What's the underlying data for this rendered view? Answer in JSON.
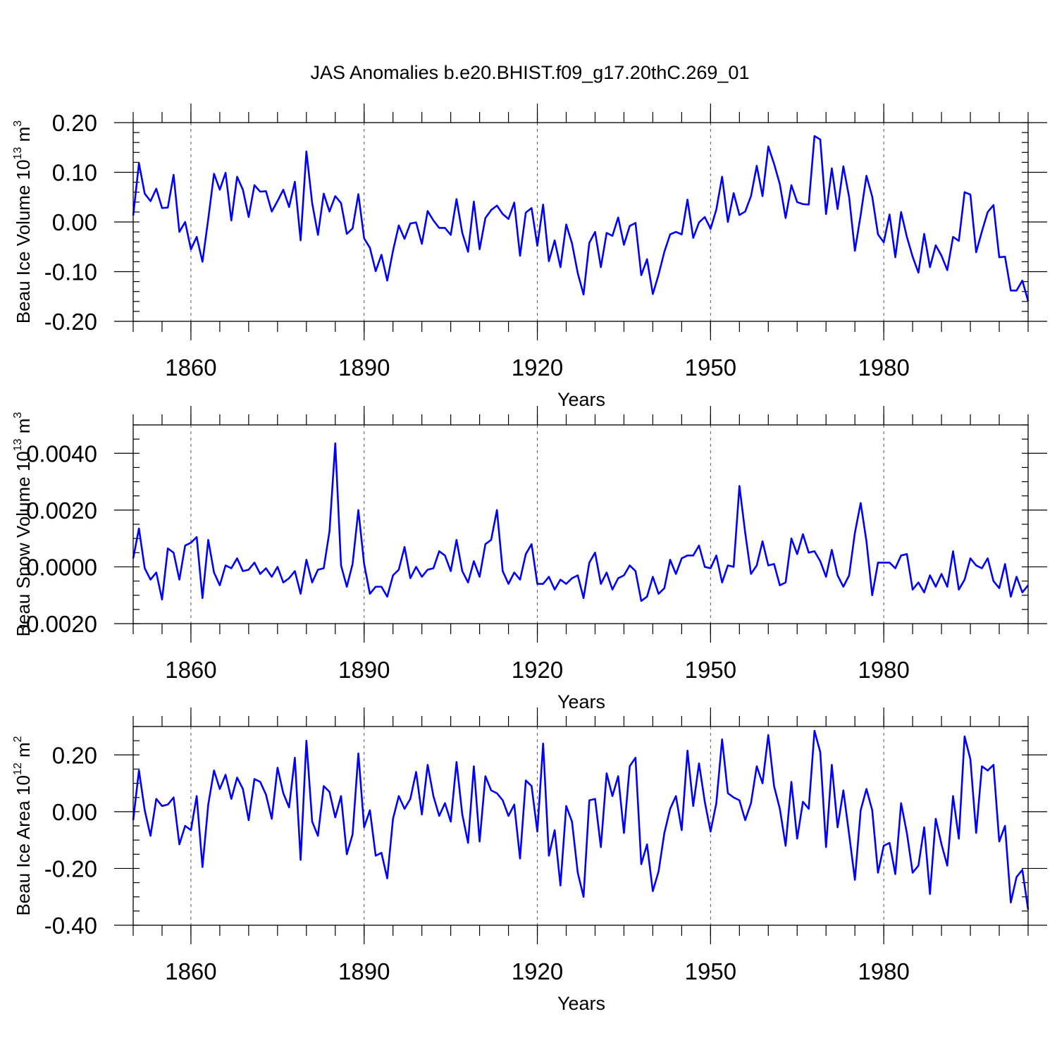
{
  "title": "JAS Anomalies b.e20.BHIST.f09_g17.20thC.269_01",
  "chart_data": [
    {
      "type": "line",
      "ylabel_main": "Beau Ice Volume 10",
      "ylabel_sup": "13",
      "ylabel_unit": "m",
      "ylabel_unit_sup": "3",
      "xlabel": "Years",
      "xlim": [
        1850,
        2005
      ],
      "ylim": [
        -0.2,
        0.2
      ],
      "yticks": [
        -0.2,
        -0.1,
        0.0,
        0.1,
        0.2
      ],
      "ytick_labels": [
        "-0.20",
        "-0.10",
        "0.00",
        "0.10",
        "0.20"
      ],
      "yminor_step": 0.02,
      "xticks": [
        1860,
        1890,
        1920,
        1950,
        1980
      ],
      "xtick_labels": [
        "1860",
        "1890",
        "1920",
        "1950",
        "1980"
      ],
      "x_start": 1850,
      "values": [
        0.013,
        0.118,
        0.057,
        0.042,
        0.067,
        0.028,
        0.029,
        0.095,
        -0.02,
        0.0,
        -0.055,
        -0.03,
        -0.08,
        0.006,
        0.097,
        0.065,
        0.099,
        0.003,
        0.091,
        0.065,
        0.01,
        0.074,
        0.061,
        0.062,
        0.021,
        0.042,
        0.065,
        0.03,
        0.081,
        -0.037,
        0.142,
        0.038,
        -0.026,
        0.057,
        0.021,
        0.052,
        0.038,
        -0.024,
        -0.013,
        0.056,
        -0.033,
        -0.052,
        -0.099,
        -0.066,
        -0.118,
        -0.058,
        -0.007,
        -0.034,
        -0.003,
        -0.001,
        -0.044,
        0.022,
        0.003,
        -0.012,
        -0.012,
        -0.026,
        0.046,
        -0.022,
        -0.06,
        0.041,
        -0.055,
        0.008,
        0.024,
        0.033,
        0.016,
        0.006,
        0.039,
        -0.068,
        0.019,
        0.028,
        -0.048,
        0.035,
        -0.079,
        -0.037,
        -0.091,
        -0.005,
        -0.043,
        -0.103,
        -0.146,
        -0.042,
        -0.02,
        -0.091,
        -0.022,
        -0.028,
        0.009,
        -0.046,
        -0.008,
        -0.002,
        -0.107,
        -0.075,
        -0.145,
        -0.106,
        -0.06,
        -0.025,
        -0.02,
        -0.025,
        0.045,
        -0.032,
        -0.001,
        0.01,
        -0.014,
        0.025,
        0.091,
        0.0,
        0.058,
        0.014,
        0.021,
        0.052,
        0.113,
        0.052,
        0.152,
        0.117,
        0.076,
        0.008,
        0.074,
        0.04,
        0.036,
        0.035,
        0.173,
        0.166,
        0.016,
        0.108,
        0.026,
        0.112,
        0.05,
        -0.058,
        0.014,
        0.093,
        0.051,
        -0.025,
        -0.041,
        0.015,
        -0.071,
        0.02,
        -0.03,
        -0.07,
        -0.102,
        -0.024,
        -0.091,
        -0.047,
        -0.068,
        -0.097,
        -0.03,
        -0.038,
        0.06,
        0.055,
        -0.061,
        -0.019,
        0.02,
        0.034,
        -0.071,
        -0.07,
        -0.138,
        -0.138,
        -0.118,
        -0.159
      ]
    },
    {
      "type": "line",
      "ylabel_main": "Beau Snow Volume 10",
      "ylabel_sup": "13",
      "ylabel_unit": "m",
      "ylabel_unit_sup": "3",
      "xlabel": "Years",
      "xlim": [
        1850,
        2005
      ],
      "ylim": [
        -0.002,
        0.005
      ],
      "yticks": [
        -0.002,
        0.0,
        0.002,
        0.004
      ],
      "ytick_labels": [
        "-0.0020",
        "0.0000",
        "0.0020",
        "0.0040"
      ],
      "yminor_step": 0.0005,
      "xticks": [
        1860,
        1890,
        1920,
        1950,
        1980
      ],
      "xtick_labels": [
        "1860",
        "1890",
        "1920",
        "1950",
        "1980"
      ],
      "x_start": 1850,
      "values": [
        0.0003,
        0.00135,
        -5e-05,
        -0.00045,
        -0.0002,
        -0.00115,
        0.00065,
        0.0005,
        -0.00045,
        0.00075,
        0.00085,
        0.00105,
        -0.0011,
        0.00095,
        -0.0002,
        -0.00065,
        5e-05,
        -5e-05,
        0.0003,
        -0.00015,
        -0.0001,
        0.00015,
        -0.00025,
        -5e-05,
        -0.00035,
        0.0,
        -0.00055,
        -0.0004,
        -0.00015,
        -0.00095,
        0.00025,
        -0.00055,
        -0.0001,
        -5e-05,
        0.00125,
        0.00435,
        5e-05,
        -0.0007,
        0.0001,
        0.002,
        0.0001,
        -0.00095,
        -0.0007,
        -0.0007,
        -0.00105,
        -0.0003,
        -0.0001,
        0.0007,
        -0.0004,
        0.0,
        -0.00035,
        -0.0001,
        -5e-05,
        0.00055,
        0.0004,
        -0.00015,
        0.00095,
        -0.00015,
        -0.00055,
        0.0002,
        -0.00035,
        0.0008,
        0.00095,
        0.002,
        -0.00015,
        -0.0006,
        -0.0002,
        -0.00045,
        0.00045,
        0.0008,
        -0.0006,
        -0.0006,
        -0.00035,
        -0.0008,
        -0.00045,
        -0.0006,
        -0.0004,
        -0.0003,
        -0.0011,
        0.00015,
        0.0005,
        -0.0006,
        -0.0002,
        -0.0008,
        -0.0004,
        -0.0003,
        5e-05,
        -0.00015,
        -0.0012,
        -0.00105,
        -0.00035,
        -0.00095,
        -0.00075,
        0.00025,
        -0.00025,
        0.0003,
        0.0004,
        0.0004,
        0.00075,
        0.0,
        -5e-05,
        0.0004,
        -0.00055,
        5e-05,
        0.0,
        0.00285,
        0.0012,
        -0.00025,
        5e-05,
        0.0009,
        5e-05,
        0.0001,
        -0.00065,
        -0.00055,
        0.001,
        0.00045,
        0.00115,
        0.0005,
        0.00055,
        0.0002,
        -0.00035,
        0.0006,
        -0.0003,
        -0.0007,
        -0.0003,
        0.0012,
        0.00225,
        0.0009,
        -0.001,
        0.00015,
        0.00015,
        0.00015,
        -5e-05,
        0.0004,
        0.00045,
        -0.0008,
        -0.00055,
        -0.0009,
        -0.0003,
        -0.0007,
        -0.00025,
        -0.0007,
        0.00055,
        -0.0008,
        -0.00045,
        0.0003,
        5e-05,
        -5e-05,
        0.0003,
        -0.0005,
        -0.00075,
        0.0001,
        -0.00105,
        -0.00035,
        -0.0009,
        -0.00065
      ]
    },
    {
      "type": "line",
      "ylabel_main": "Beau Ice Area 10",
      "ylabel_sup": "12",
      "ylabel_unit": "m",
      "ylabel_unit_sup": "2",
      "xlabel": "Years",
      "xlim": [
        1850,
        2005
      ],
      "ylim": [
        -0.4,
        0.3
      ],
      "yticks": [
        -0.4,
        -0.2,
        0.0,
        0.2
      ],
      "ytick_labels": [
        "-0.40",
        "-0.20",
        "0.00",
        "0.20"
      ],
      "yminor_step": 0.05,
      "xticks": [
        1860,
        1890,
        1920,
        1950,
        1980
      ],
      "xtick_labels": [
        "1860",
        "1890",
        "1920",
        "1950",
        "1980"
      ],
      "x_start": 1850,
      "values": [
        -0.03,
        0.145,
        0.005,
        -0.085,
        0.045,
        0.02,
        0.025,
        0.05,
        -0.115,
        -0.05,
        -0.065,
        0.055,
        -0.195,
        0.025,
        0.145,
        0.08,
        0.13,
        0.045,
        0.12,
        0.08,
        -0.03,
        0.115,
        0.105,
        0.06,
        -0.025,
        0.155,
        0.065,
        0.015,
        0.19,
        -0.17,
        0.25,
        -0.035,
        -0.085,
        0.09,
        0.07,
        -0.02,
        0.055,
        -0.15,
        -0.08,
        0.205,
        -0.055,
        0.005,
        -0.155,
        -0.145,
        -0.235,
        -0.025,
        0.055,
        0.01,
        0.045,
        0.14,
        -0.01,
        0.165,
        0.055,
        -0.015,
        0.03,
        -0.035,
        0.175,
        -0.01,
        -0.11,
        0.16,
        -0.105,
        0.125,
        0.075,
        0.065,
        0.04,
        -0.015,
        0.025,
        -0.165,
        0.11,
        0.09,
        -0.07,
        0.24,
        -0.155,
        -0.065,
        -0.26,
        0.02,
        -0.035,
        -0.215,
        -0.3,
        0.04,
        0.045,
        -0.125,
        0.135,
        0.055,
        0.125,
        -0.075,
        0.16,
        0.19,
        -0.185,
        -0.115,
        -0.28,
        -0.21,
        -0.075,
        0.01,
        0.055,
        -0.065,
        0.215,
        0.02,
        0.17,
        0.035,
        -0.07,
        0.03,
        0.255,
        0.065,
        0.05,
        0.04,
        -0.03,
        0.03,
        0.16,
        0.1,
        0.27,
        0.09,
        0.01,
        -0.12,
        0.105,
        -0.095,
        0.035,
        0.01,
        0.285,
        0.21,
        -0.125,
        0.165,
        -0.055,
        0.075,
        -0.08,
        -0.24,
        0.005,
        0.08,
        0.005,
        -0.215,
        -0.12,
        -0.11,
        -0.22,
        0.03,
        -0.075,
        -0.215,
        -0.19,
        -0.055,
        -0.29,
        -0.025,
        -0.115,
        -0.19,
        0.055,
        -0.095,
        0.265,
        0.185,
        -0.075,
        0.16,
        0.145,
        0.165,
        -0.105,
        -0.05,
        -0.32,
        -0.23,
        -0.205,
        -0.345
      ]
    }
  ]
}
